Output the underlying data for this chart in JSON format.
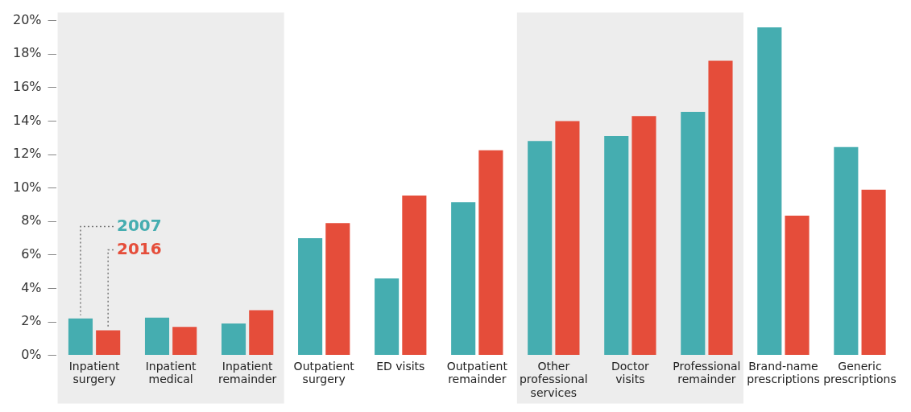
{
  "chart_data": {
    "type": "bar",
    "categories": [
      "Inpatient surgery",
      "Inpatient medical",
      "Inpatient remainder",
      "Outpatient surgery",
      "ED visits",
      "Outpatient remainder",
      "Other professional services",
      "Doctor visits",
      "Professional remainder",
      "Brand-name prescriptions",
      "Generic prescriptions"
    ],
    "series": [
      {
        "name": "2007",
        "color": "#45adb0",
        "values": [
          2.2,
          2.25,
          1.9,
          7.0,
          4.6,
          9.15,
          12.8,
          13.1,
          14.55,
          19.6,
          12.45
        ]
      },
      {
        "name": "2016",
        "color": "#e54d3a",
        "values": [
          1.5,
          1.7,
          2.7,
          7.9,
          9.55,
          12.25,
          14.0,
          14.3,
          17.6,
          8.35,
          9.9
        ]
      }
    ],
    "ylim": [
      0,
      20
    ],
    "yticks": [
      {
        "value": 0,
        "label": "0%"
      },
      {
        "value": 2,
        "label": "2%"
      },
      {
        "value": 4,
        "label": "4%"
      },
      {
        "value": 6,
        "label": "6%"
      },
      {
        "value": 8,
        "label": "8%"
      },
      {
        "value": 10,
        "label": "10%"
      },
      {
        "value": 12,
        "label": "12%"
      },
      {
        "value": 14,
        "label": "14%"
      },
      {
        "value": 16,
        "label": "16%"
      },
      {
        "value": 18,
        "label": "18%"
      },
      {
        "value": 20,
        "label": "20%"
      }
    ],
    "bands": [
      {
        "axis": "x",
        "from": "Inpatient surgery",
        "to": "Inpatient remainder",
        "color": "#ededed"
      },
      {
        "axis": "x",
        "from": "Other professional services",
        "to": "Professional remainder",
        "color": "#ededed"
      }
    ],
    "grid": false,
    "legend": false
  }
}
